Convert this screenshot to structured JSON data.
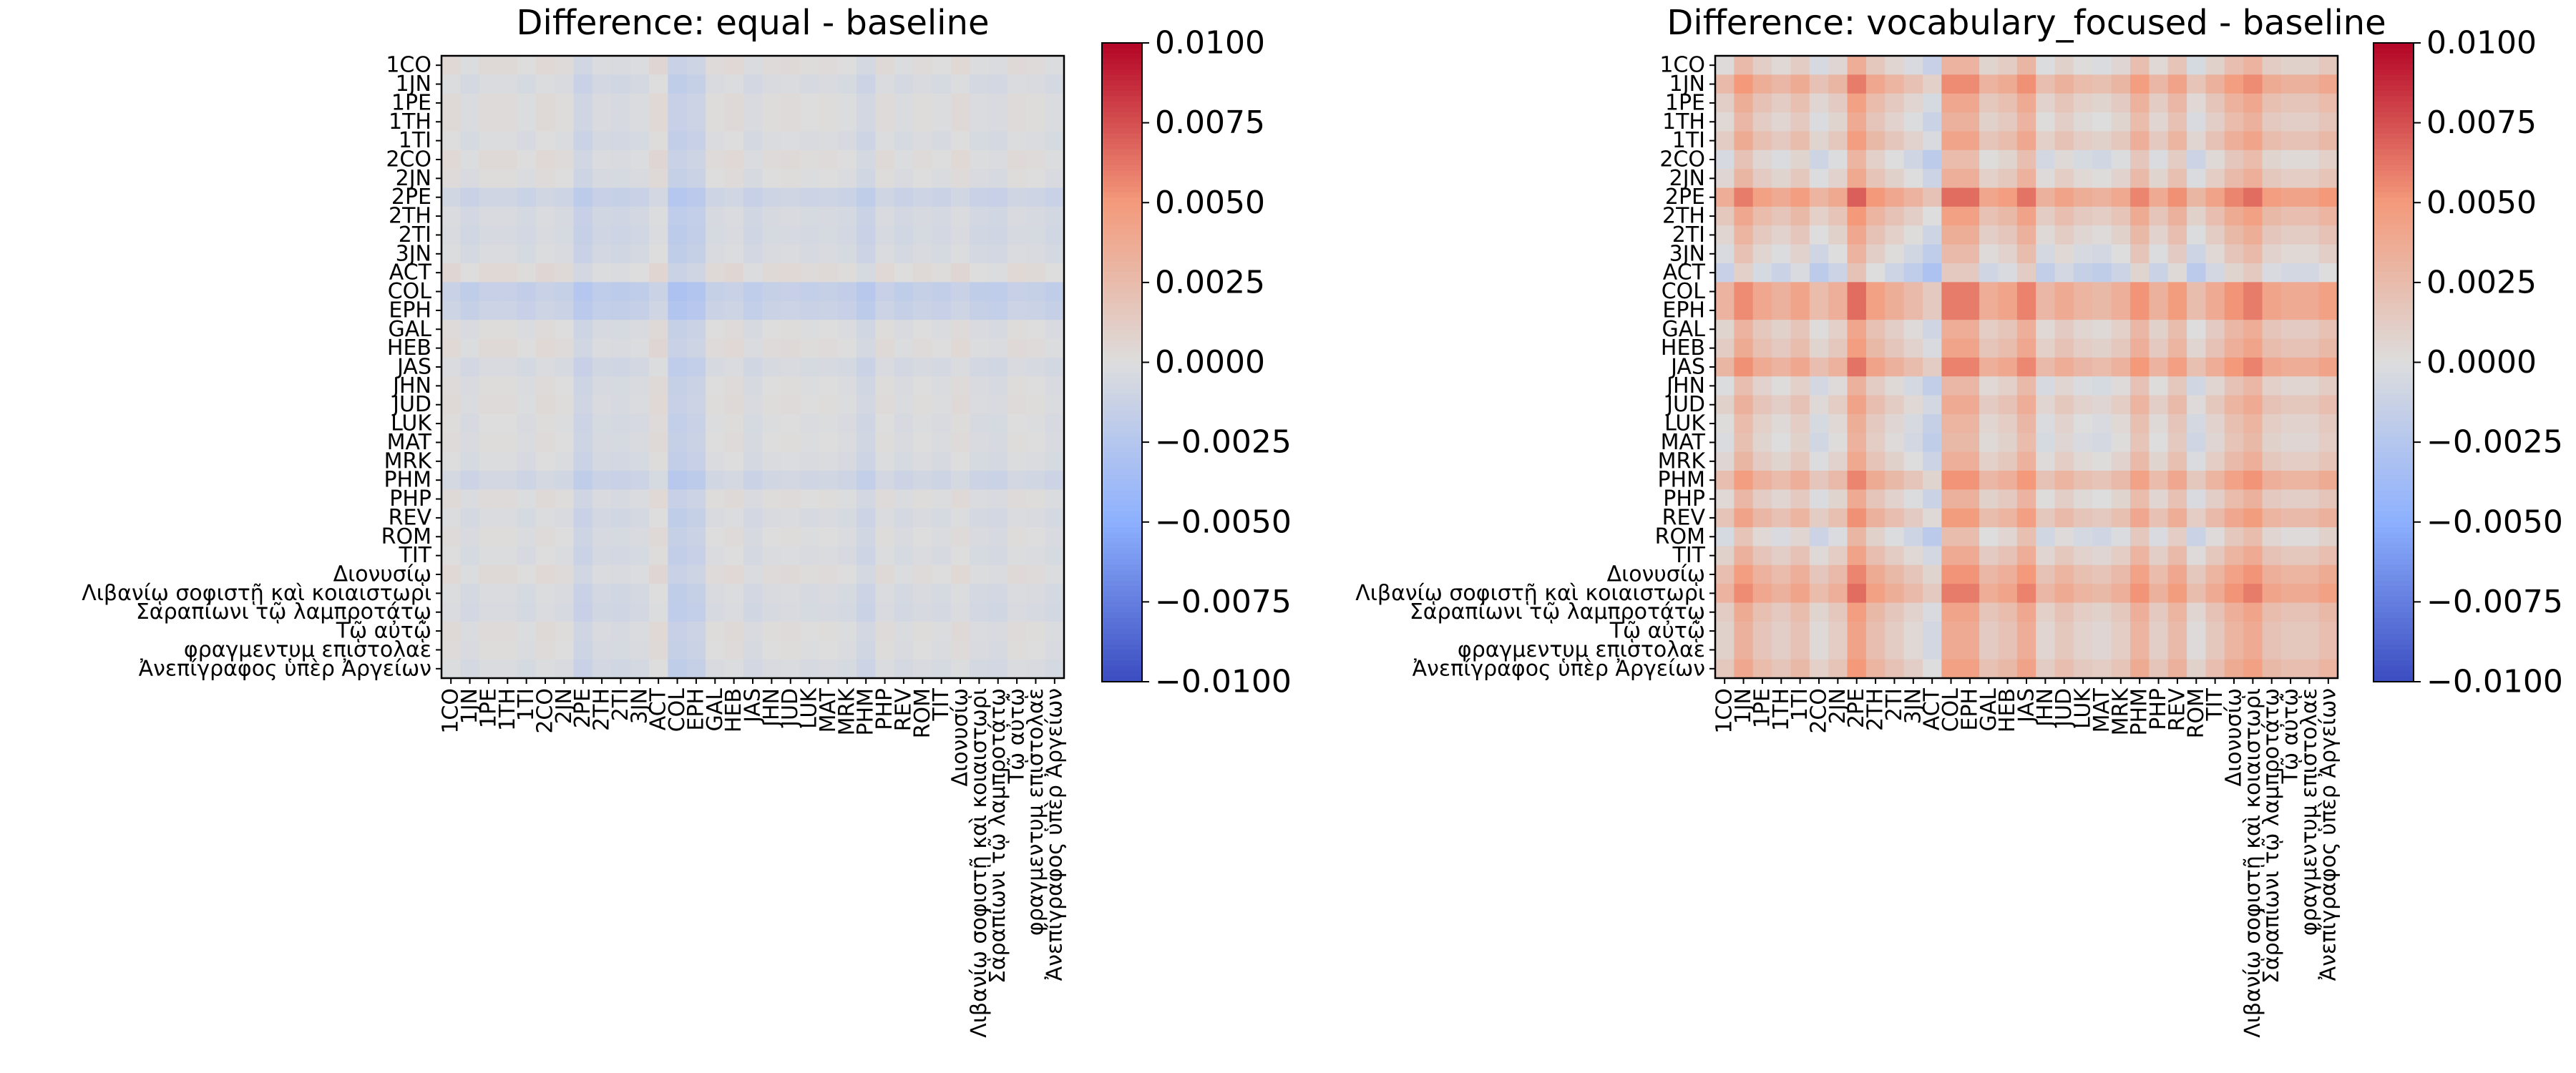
{
  "chart_data": [
    {
      "type": "heatmap",
      "title": "Difference: equal - baseline",
      "labels": [
        "1CO",
        "1JN",
        "1PE",
        "1TH",
        "1TI",
        "2CO",
        "2JN",
        "2PE",
        "2TH",
        "2TI",
        "3JN",
        "ACT",
        "COL",
        "EPH",
        "GAL",
        "HEB",
        "JAS",
        "JHN",
        "JUD",
        "LUK",
        "MAT",
        "MRK",
        "PHM",
        "PHP",
        "REV",
        "ROM",
        "TIT",
        "Διονυσίῳ",
        "Λιβανίῳ σοφιστῇ καὶ κοιαιστωρι",
        "Σαραπίωνι τῷ λαμπροτάτῳ",
        "Τῷ αὐτῷ",
        "φραγμεντυμ επιστολαε",
        "Ἀνεπίγραφος ὑπὲρ Ἀργείων"
      ],
      "row_effect": [
        0.0002,
        -0.0003,
        0.0001,
        0.0001,
        -0.0002,
        0.0002,
        0,
        -0.001,
        -0.0004,
        -0.0005,
        -0.0003,
        0.0003,
        -0.0015,
        -0.0012,
        0,
        0.0002,
        -0.0004,
        0,
        0.0001,
        -0.0001,
        0,
        -0.0002,
        -0.0008,
        0.0001,
        -0.0003,
        0,
        -0.0002,
        0.0002,
        -0.0003,
        -0.0004,
        0.0001,
        0,
        -0.0003
      ],
      "vmin": -0.01,
      "vmax": 0.01,
      "colorbar_ticks": [
        "0.0100",
        "0.0075",
        "0.0050",
        "0.0025",
        "0.0000",
        "−0.0025",
        "−0.0050",
        "−0.0075",
        "−0.0100"
      ],
      "colormap": "coolwarm"
    },
    {
      "type": "heatmap",
      "title": "Difference: vocabulary_focused - baseline",
      "labels": [
        "1CO",
        "1JN",
        "1PE",
        "1TH",
        "1TI",
        "2CO",
        "2JN",
        "2PE",
        "2TH",
        "2TI",
        "3JN",
        "ACT",
        "COL",
        "EPH",
        "GAL",
        "HEB",
        "JAS",
        "JHN",
        "JUD",
        "LUK",
        "MAT",
        "MRK",
        "PHM",
        "PHP",
        "REV",
        "ROM",
        "TIT",
        "Διονυσίῳ",
        "Λιβανίῳ σοφιστῇ καὶ κοιαιστωρι",
        "Σαραπίωνι τῷ λαμπροτάτῳ",
        "Τῷ αὐτῷ",
        "φραγμεντυμ επιστολαε",
        "Ἀνεπίγραφος ὑπὲρ Ἀργείων"
      ],
      "row_effect": [
        0.0001,
        0.0025,
        0.001,
        0.0003,
        0.0012,
        -0.0005,
        0.0004,
        0.0035,
        0.0015,
        0.0005,
        -0.0004,
        -0.0015,
        0.003,
        0.003,
        0.0006,
        0.0012,
        0.0028,
        -0.0002,
        0.0008,
        0,
        -0.0003,
        0.0004,
        0.0022,
        0.0003,
        0.0018,
        -0.0006,
        0.0008,
        0.0022,
        0.003,
        0.0012,
        0.0008,
        0.0008,
        0.0015
      ],
      "vmin": -0.01,
      "vmax": 0.01,
      "colorbar_ticks": [
        "0.0100",
        "0.0075",
        "0.0050",
        "0.0025",
        "0.0000",
        "−0.0025",
        "−0.0050",
        "−0.0075",
        "−0.0100"
      ],
      "colormap": "coolwarm"
    }
  ]
}
